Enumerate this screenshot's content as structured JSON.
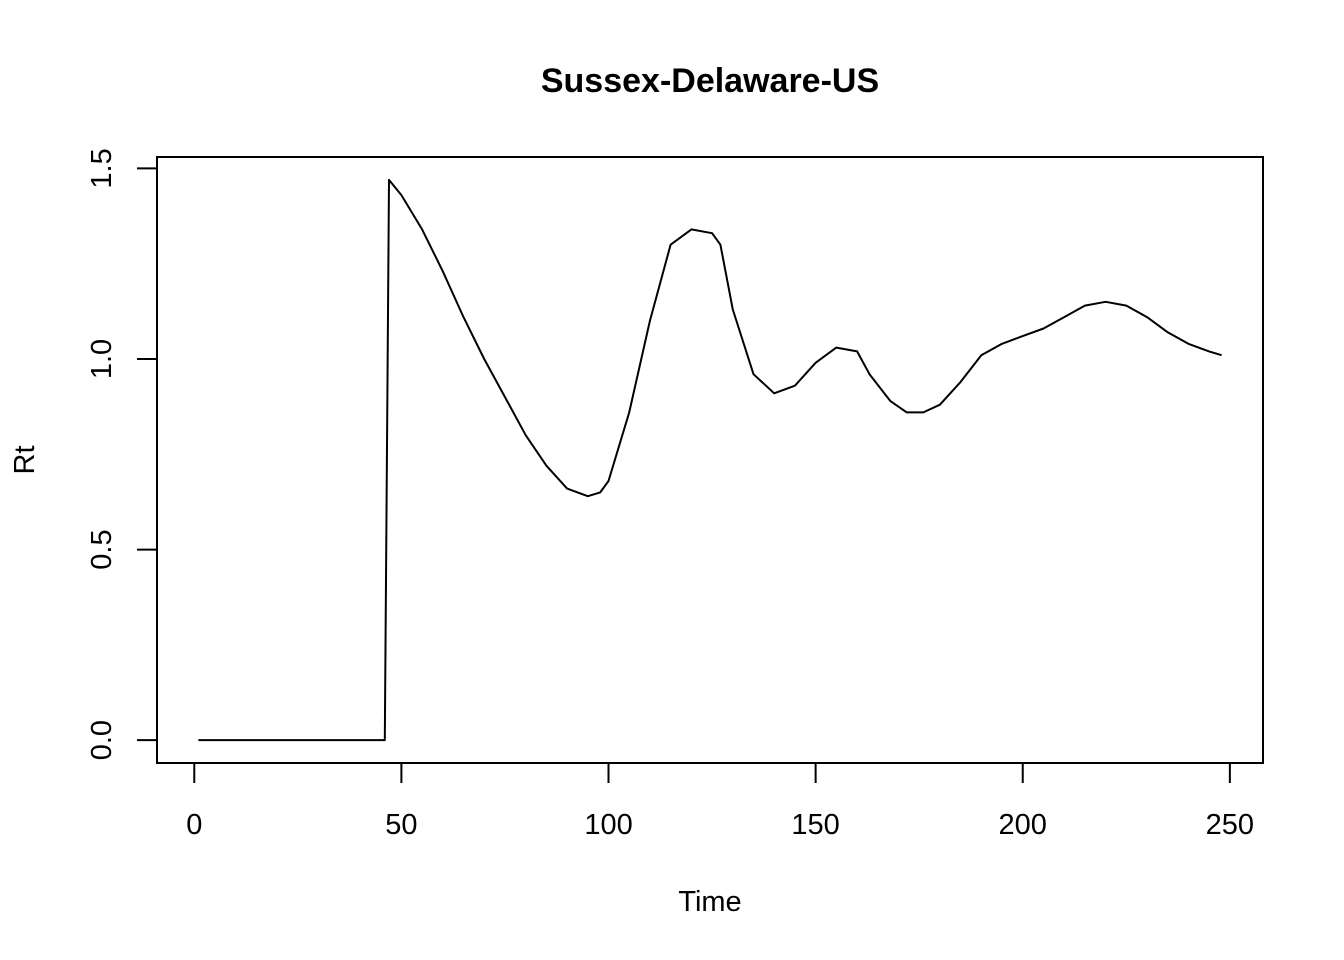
{
  "chart_data": {
    "type": "line",
    "title": "Sussex-Delaware-US",
    "xlabel": "Time",
    "ylabel": "Rt",
    "xlim": [
      -9,
      258
    ],
    "ylim": [
      -0.06,
      1.53
    ],
    "x_ticks": [
      0,
      50,
      100,
      150,
      200,
      250
    ],
    "y_ticks": [
      0.0,
      0.5,
      1.0,
      1.5
    ],
    "x_tick_labels": [
      "0",
      "50",
      "100",
      "150",
      "200",
      "250"
    ],
    "y_tick_labels": [
      "0.0",
      "0.5",
      "1.0",
      "1.5"
    ],
    "grid": false,
    "legend": "none",
    "line_color": "#000000",
    "series": [
      {
        "x": [
          1,
          10,
          20,
          30,
          40,
          46,
          47,
          50,
          55,
          60,
          65,
          70,
          75,
          80,
          85,
          90,
          95,
          98,
          100,
          105,
          110,
          115,
          120,
          125,
          127,
          130,
          135,
          140,
          145,
          150,
          155,
          160,
          163,
          168,
          172,
          176,
          180,
          185,
          190,
          195,
          200,
          205,
          210,
          215,
          220,
          225,
          230,
          235,
          240,
          245,
          248
        ],
        "y": [
          0,
          0,
          0,
          0,
          0,
          0,
          1.47,
          1.43,
          1.34,
          1.23,
          1.11,
          1.0,
          0.9,
          0.8,
          0.72,
          0.66,
          0.64,
          0.65,
          0.68,
          0.86,
          1.1,
          1.3,
          1.34,
          1.33,
          1.3,
          1.13,
          0.96,
          0.91,
          0.93,
          0.99,
          1.03,
          1.02,
          0.96,
          0.89,
          0.86,
          0.86,
          0.88,
          0.94,
          1.01,
          1.04,
          1.06,
          1.08,
          1.11,
          1.14,
          1.15,
          1.14,
          1.11,
          1.07,
          1.04,
          1.02,
          1.01
        ]
      }
    ]
  }
}
